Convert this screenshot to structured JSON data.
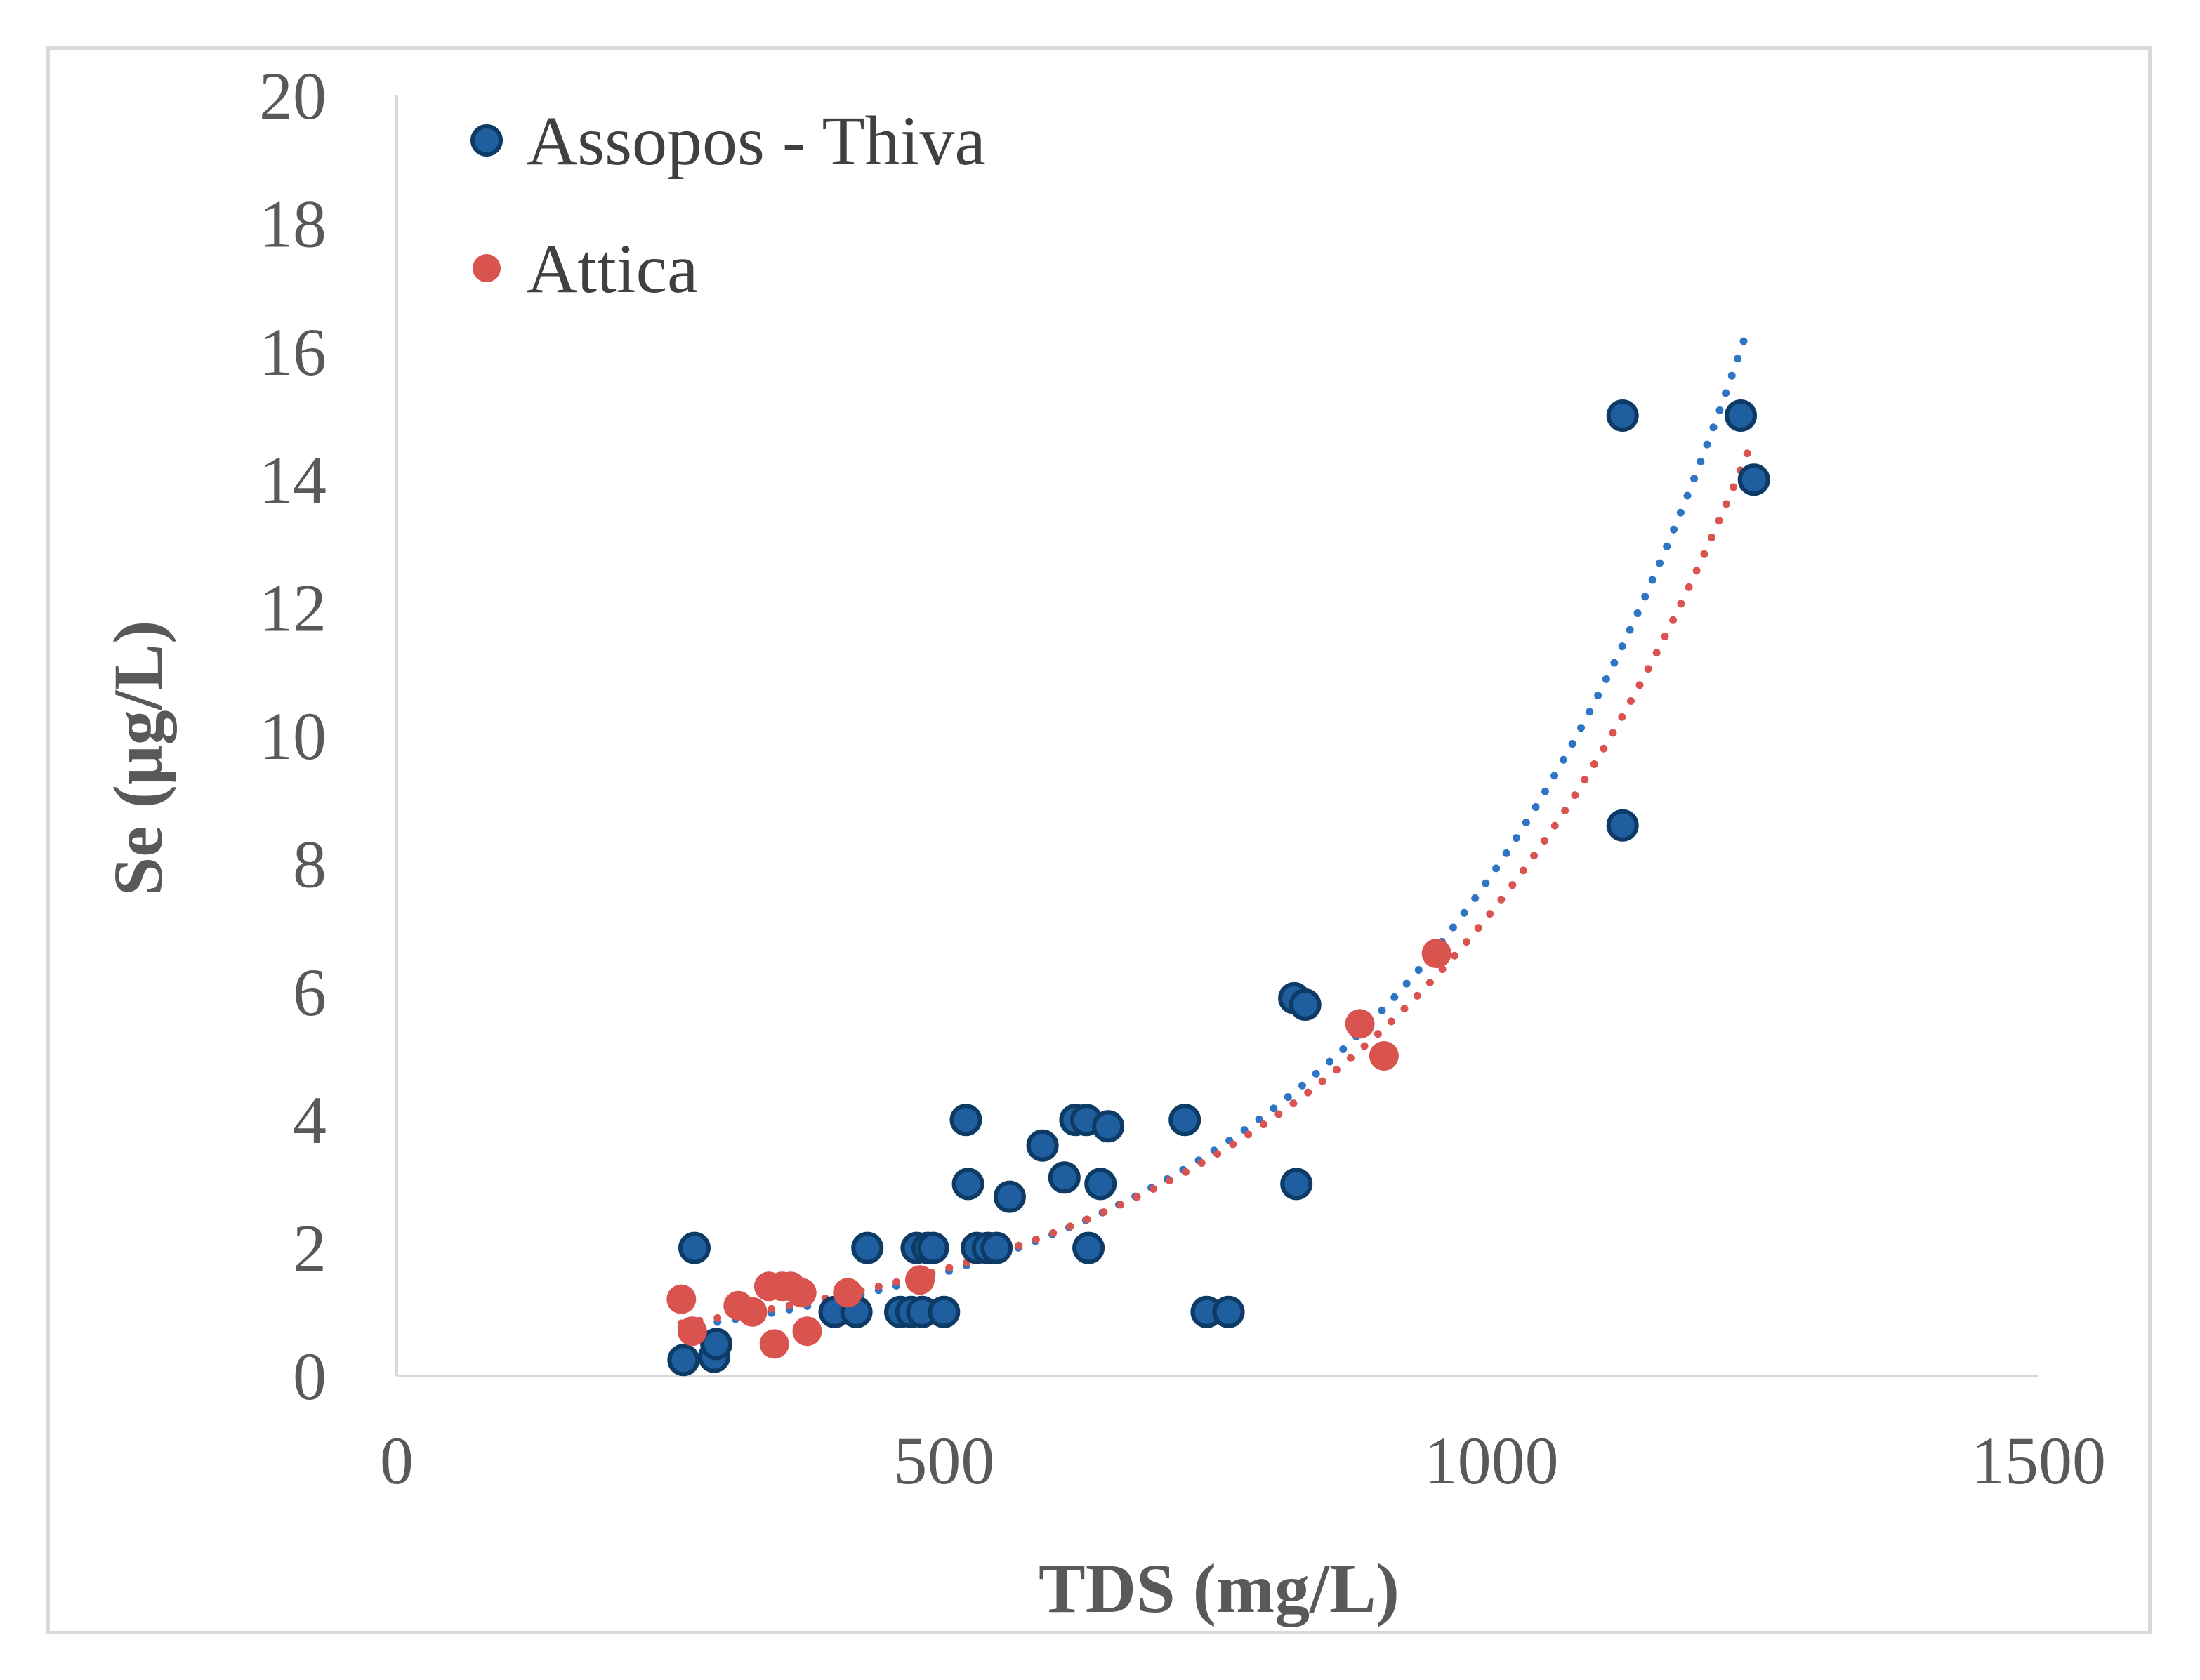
{
  "chart_data": {
    "type": "scatter",
    "xlabel": "TDS (mg/L)",
    "ylabel": "Se (μg/L)",
    "xlim": [
      0,
      1500
    ],
    "ylim": [
      0,
      20
    ],
    "xticks": [
      "0",
      "500",
      "1000",
      "1500"
    ],
    "yticks": [
      "0",
      "2",
      "4",
      "6",
      "8",
      "10",
      "12",
      "14",
      "16",
      "18",
      "20"
    ],
    "grid": false,
    "legend_position": "top-left",
    "series": [
      {
        "name": "Assopos - Thiva",
        "color": "#1f5fa0",
        "trendline": {
          "type": "exponential",
          "a": 0.335,
          "b": 0.00315,
          "x_range": [
            260,
            1235
          ],
          "style": "dotted",
          "color": "#2e75c6"
        },
        "points": [
          [
            262,
            0.25
          ],
          [
            272,
            2.0
          ],
          [
            290,
            0.3
          ],
          [
            292,
            0.5
          ],
          [
            400,
            1.0
          ],
          [
            420,
            1.0
          ],
          [
            430,
            2.0
          ],
          [
            460,
            1.0
          ],
          [
            470,
            1.0
          ],
          [
            475,
            2.0
          ],
          [
            480,
            1.0
          ],
          [
            485,
            2.0
          ],
          [
            490,
            2.0
          ],
          [
            500,
            1.0
          ],
          [
            520,
            4.0
          ],
          [
            522,
            3.0
          ],
          [
            530,
            2.0
          ],
          [
            540,
            2.0
          ],
          [
            548,
            2.0
          ],
          [
            560,
            2.8
          ],
          [
            590,
            3.6
          ],
          [
            610,
            3.1
          ],
          [
            620,
            4.0
          ],
          [
            630,
            4.0
          ],
          [
            632,
            2.0
          ],
          [
            643,
            3.0
          ],
          [
            650,
            3.9
          ],
          [
            720,
            4.0
          ],
          [
            740,
            1.0
          ],
          [
            760,
            1.0
          ],
          [
            820,
            5.9
          ],
          [
            830,
            5.8
          ],
          [
            822,
            3.0
          ],
          [
            1120,
            15.0
          ],
          [
            1120,
            8.6
          ],
          [
            1228,
            15.0
          ],
          [
            1240,
            14.0
          ]
        ]
      },
      {
        "name": "Attica",
        "color": "#d9534f",
        "trendline": {
          "type": "exponential",
          "a": 0.383,
          "b": 0.00294,
          "x_range": [
            260,
            1240
          ],
          "style": "dotted",
          "color": "#d9534f"
        },
        "points": [
          [
            260,
            1.2
          ],
          [
            270,
            0.7
          ],
          [
            312,
            1.1
          ],
          [
            325,
            1.0
          ],
          [
            340,
            1.4
          ],
          [
            345,
            0.5
          ],
          [
            352,
            1.4
          ],
          [
            360,
            1.4
          ],
          [
            370,
            1.3
          ],
          [
            375,
            0.7
          ],
          [
            412,
            1.3
          ],
          [
            478,
            1.5
          ],
          [
            880,
            5.5
          ],
          [
            902,
            5.0
          ],
          [
            950,
            6.6
          ]
        ]
      }
    ]
  }
}
